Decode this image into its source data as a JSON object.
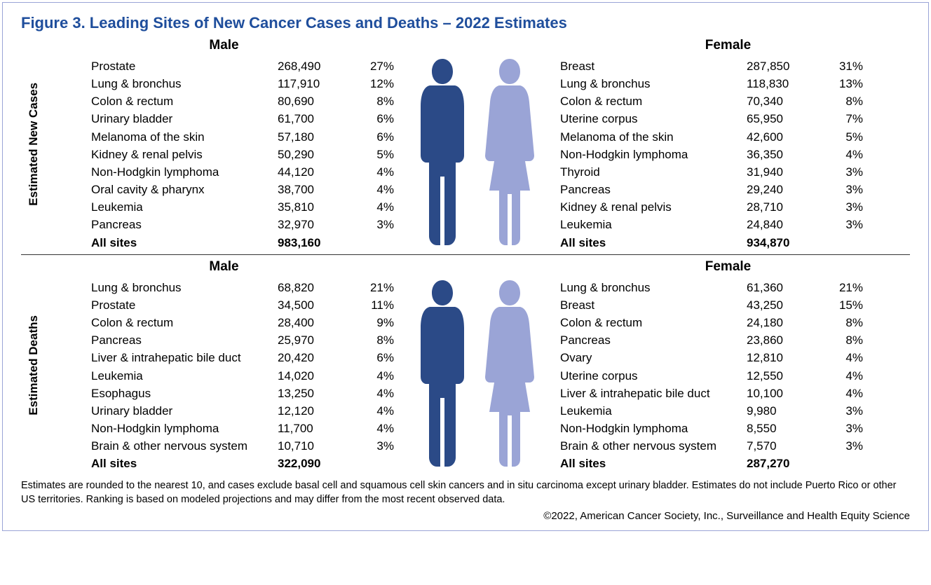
{
  "title": "Figure 3. Leading Sites of New Cancer Cases and Deaths – 2022 Estimates",
  "colors": {
    "title": "#1f4e9c",
    "border": "#9aa4d6",
    "male_fill": "#2b4a87",
    "female_fill": "#9aa4d6"
  },
  "sections": [
    {
      "vlabel": "Estimated New Cases",
      "male_header": "Male",
      "female_header": "Female",
      "male_rows": [
        {
          "site": "Prostate",
          "count": "268,490",
          "pct": "27%"
        },
        {
          "site": "Lung & bronchus",
          "count": "117,910",
          "pct": "12%"
        },
        {
          "site": "Colon & rectum",
          "count": "80,690",
          "pct": "8%"
        },
        {
          "site": "Urinary bladder",
          "count": "61,700",
          "pct": "6%"
        },
        {
          "site": "Melanoma of the skin",
          "count": "57,180",
          "pct": "6%"
        },
        {
          "site": "Kidney & renal pelvis",
          "count": "50,290",
          "pct": "5%"
        },
        {
          "site": "Non-Hodgkin lymphoma",
          "count": "44,120",
          "pct": "4%"
        },
        {
          "site": "Oral cavity & pharynx",
          "count": "38,700",
          "pct": "4%"
        },
        {
          "site": "Leukemia",
          "count": "35,810",
          "pct": "4%"
        },
        {
          "site": "Pancreas",
          "count": "32,970",
          "pct": "3%"
        }
      ],
      "male_total": {
        "site": "All sites",
        "count": "983,160",
        "pct": ""
      },
      "female_rows": [
        {
          "site": "Breast",
          "count": "287,850",
          "pct": "31%"
        },
        {
          "site": "Lung & bronchus",
          "count": "118,830",
          "pct": "13%"
        },
        {
          "site": "Colon & rectum",
          "count": "70,340",
          "pct": "8%"
        },
        {
          "site": "Uterine corpus",
          "count": "65,950",
          "pct": "7%"
        },
        {
          "site": "Melanoma of the skin",
          "count": "42,600",
          "pct": "5%"
        },
        {
          "site": "Non-Hodgkin lymphoma",
          "count": "36,350",
          "pct": "4%"
        },
        {
          "site": "Thyroid",
          "count": "31,940",
          "pct": "3%"
        },
        {
          "site": "Pancreas",
          "count": "29,240",
          "pct": "3%"
        },
        {
          "site": "Kidney & renal pelvis",
          "count": "28,710",
          "pct": "3%"
        },
        {
          "site": "Leukemia",
          "count": "24,840",
          "pct": "3%"
        }
      ],
      "female_total": {
        "site": "All sites",
        "count": "934,870",
        "pct": ""
      }
    },
    {
      "vlabel": "Estimated Deaths",
      "male_header": "Male",
      "female_header": "Female",
      "male_rows": [
        {
          "site": "Lung & bronchus",
          "count": "68,820",
          "pct": "21%"
        },
        {
          "site": "Prostate",
          "count": "34,500",
          "pct": "11%"
        },
        {
          "site": "Colon & rectum",
          "count": "28,400",
          "pct": "9%"
        },
        {
          "site": "Pancreas",
          "count": "25,970",
          "pct": "8%"
        },
        {
          "site": "Liver & intrahepatic bile duct",
          "count": "20,420",
          "pct": "6%"
        },
        {
          "site": "Leukemia",
          "count": "14,020",
          "pct": "4%"
        },
        {
          "site": "Esophagus",
          "count": "13,250",
          "pct": "4%"
        },
        {
          "site": "Urinary bladder",
          "count": "12,120",
          "pct": "4%"
        },
        {
          "site": "Non-Hodgkin lymphoma",
          "count": "11,700",
          "pct": "4%"
        },
        {
          "site": "Brain & other nervous system",
          "count": "10,710",
          "pct": "3%"
        }
      ],
      "male_total": {
        "site": "All sites",
        "count": "322,090",
        "pct": ""
      },
      "female_rows": [
        {
          "site": "Lung & bronchus",
          "count": "61,360",
          "pct": "21%"
        },
        {
          "site": "Breast",
          "count": "43,250",
          "pct": "15%"
        },
        {
          "site": "Colon & rectum",
          "count": "24,180",
          "pct": "8%"
        },
        {
          "site": "Pancreas",
          "count": "23,860",
          "pct": "8%"
        },
        {
          "site": "Ovary",
          "count": "12,810",
          "pct": "4%"
        },
        {
          "site": "Uterine corpus",
          "count": "12,550",
          "pct": "4%"
        },
        {
          "site": "Liver & intrahepatic bile duct",
          "count": "10,100",
          "pct": "4%"
        },
        {
          "site": "Leukemia",
          "count": "9,980",
          "pct": "3%"
        },
        {
          "site": "Non-Hodgkin lymphoma",
          "count": "8,550",
          "pct": "3%"
        },
        {
          "site": "Brain & other nervous system",
          "count": "7,570",
          "pct": "3%"
        }
      ],
      "female_total": {
        "site": "All sites",
        "count": "287,270",
        "pct": ""
      }
    }
  ],
  "footnote": "Estimates are rounded to the nearest 10, and cases exclude basal cell and squamous cell skin cancers and in situ carcinoma except urinary bladder. Estimates do not include Puerto Rico or other US territories. Ranking is based on modeled projections and may differ from the most recent observed data.",
  "copyright": "©2022, American Cancer Society, Inc., Surveillance and Health Equity Science"
}
